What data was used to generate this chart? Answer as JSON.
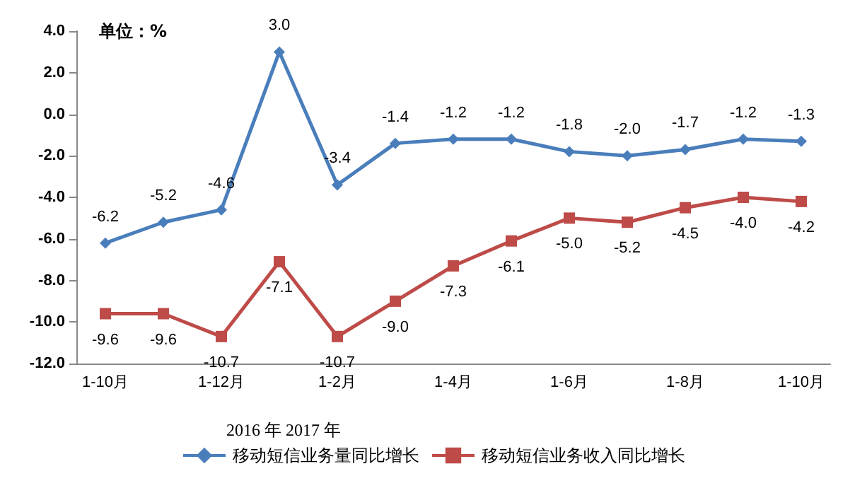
{
  "chart_data": {
    "type": "line",
    "categories": [
      "1-10月",
      null,
      "1-12月",
      null,
      "1-2月",
      null,
      "1-4月",
      null,
      "1-6月",
      null,
      "1-8月",
      null,
      "1-10月"
    ],
    "series": [
      {
        "name": "移动短信业务量同比增长",
        "color": "#4a7ebb",
        "marker": "diamond",
        "values": [
          -6.2,
          -5.2,
          -4.6,
          3.0,
          -3.4,
          -1.4,
          -1.2,
          -1.2,
          -1.8,
          -2.0,
          -1.7,
          -1.2,
          -1.3
        ],
        "value_labels": [
          "-6.2",
          "-5.2",
          "-4.6",
          "3.0",
          "-3.4",
          "-1.4",
          "-1.2",
          "-1.2",
          "-1.8",
          "-2.0",
          "-1.7",
          "-1.2",
          "-1.3"
        ]
      },
      {
        "name": "移动短信业务收入同比增长",
        "color": "#be4b48",
        "marker": "square",
        "values": [
          -9.6,
          -9.6,
          -10.7,
          -7.1,
          -10.7,
          -9.0,
          -7.3,
          -6.1,
          -5.0,
          -5.2,
          -4.5,
          -4.0,
          -4.2
        ],
        "value_labels": [
          "-9.6",
          "-9.6",
          "-10.7",
          "-7.1",
          "-10.7",
          "-9.0",
          "-7.3",
          "-6.1",
          "-5.0",
          "-5.2",
          "-4.5",
          "-4.0",
          "-4.2"
        ]
      }
    ],
    "ylim": [
      -12,
      4
    ],
    "yticks": [
      {
        "value": -12,
        "label": "-12.0"
      },
      {
        "value": -10,
        "label": "-10.0"
      },
      {
        "value": -8,
        "label": "-8.0"
      },
      {
        "value": -6,
        "label": "-6.0"
      },
      {
        "value": -4,
        "label": "-4.0"
      },
      {
        "value": -2,
        "label": "-2.0"
      },
      {
        "value": 0,
        "label": "0.0"
      },
      {
        "value": 2,
        "label": "2.0"
      },
      {
        "value": 4,
        "label": "4.0"
      }
    ],
    "grid": false,
    "legend": "bottom",
    "line_style": "solid",
    "annotations": [
      "单位：%",
      "2016 年 2017 年"
    ]
  }
}
